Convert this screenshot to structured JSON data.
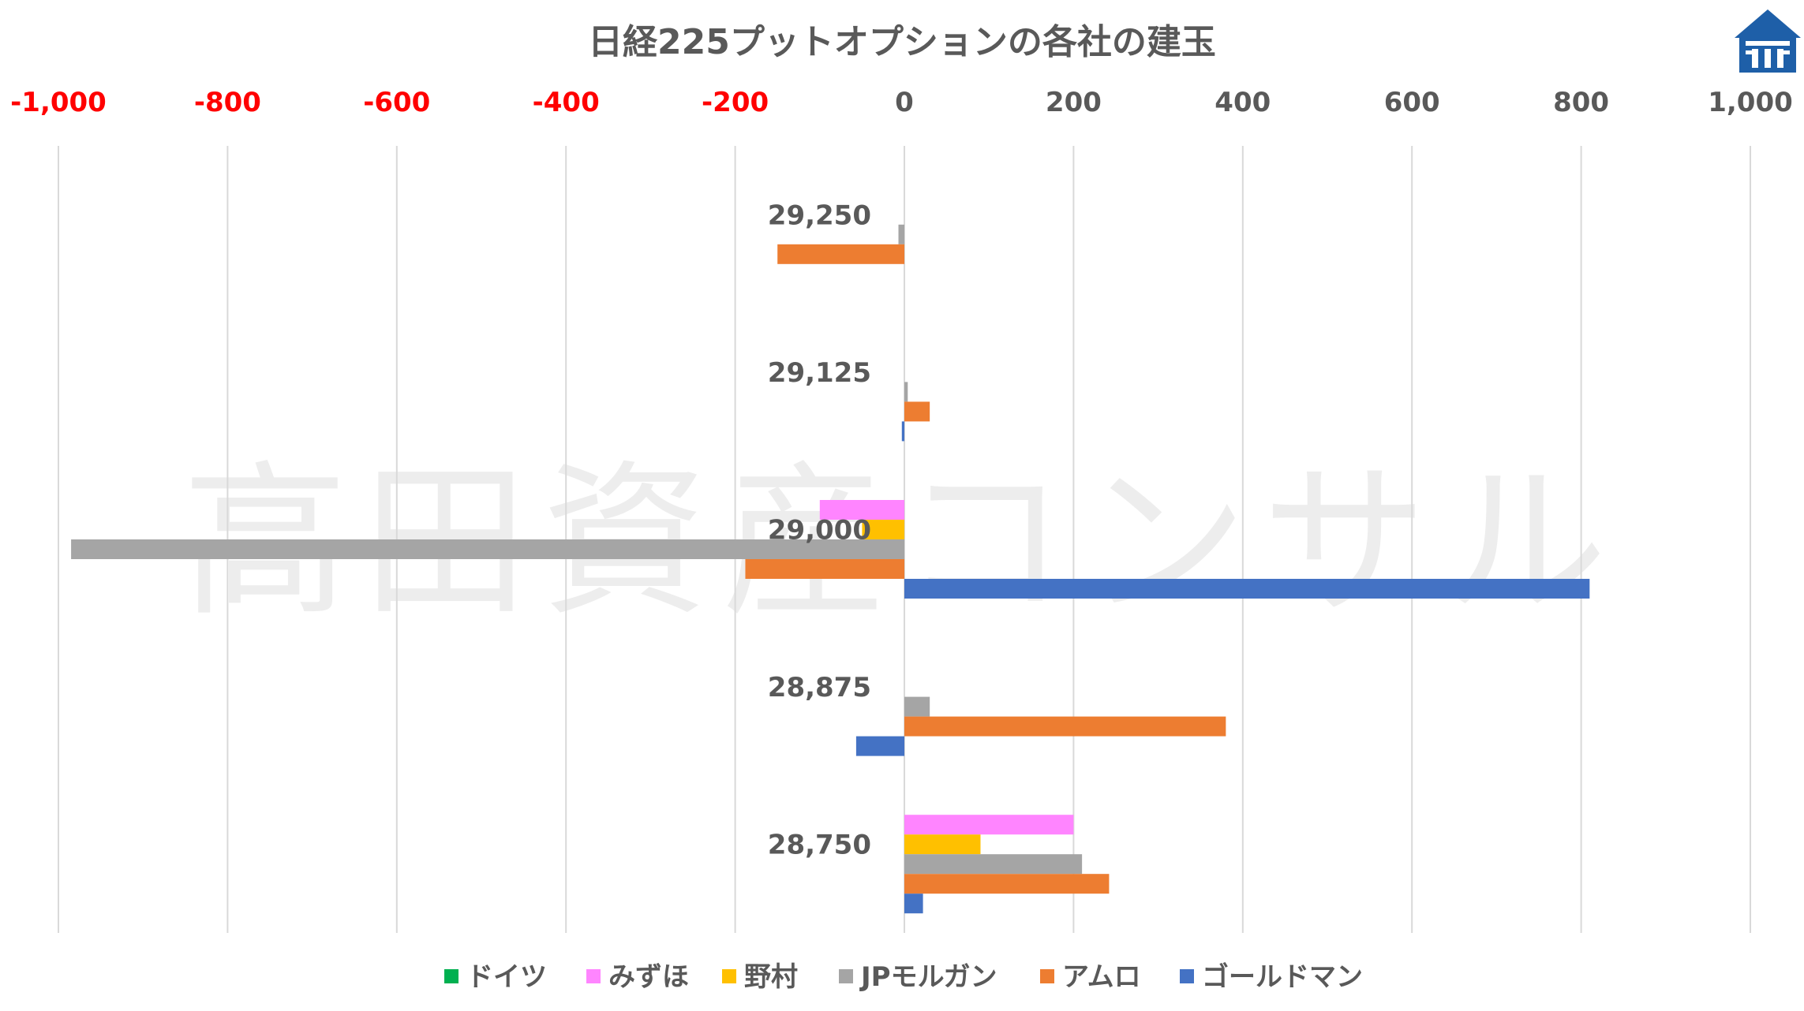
{
  "chart_data": {
    "type": "bar",
    "orientation": "horizontal",
    "title": "日経225プットオプションの各社の建玉",
    "watermark": "高田資産コンサル",
    "xlim": [
      -1000,
      1000
    ],
    "x_ticks": [
      -1000,
      -800,
      -600,
      -400,
      -200,
      0,
      200,
      400,
      600,
      800,
      1000
    ],
    "x_tick_labels": [
      "-1,000",
      "-800",
      "-600",
      "-400",
      "-200",
      "0",
      "200",
      "400",
      "600",
      "800",
      "1,000"
    ],
    "negative_tick_color": "#ff0000",
    "tick_color": "#595959",
    "grid": true,
    "legend_position": "bottom",
    "categories": [
      "29,250",
      "29,125",
      "29,000",
      "28,875",
      "28,750"
    ],
    "series": [
      {
        "name": "ドイツ",
        "color": "#00b050",
        "values": [
          0,
          0,
          0,
          0,
          0
        ]
      },
      {
        "name": "みずほ",
        "color": "#ff85ff",
        "values": [
          0,
          0,
          -100,
          0,
          200
        ]
      },
      {
        "name": "野村",
        "color": "#ffc000",
        "values": [
          0,
          0,
          -50,
          0,
          90
        ]
      },
      {
        "name": "JPモルガン",
        "color": "#a5a5a5",
        "values": [
          -7,
          4,
          -985,
          30,
          210
        ]
      },
      {
        "name": "アムロ",
        "color": "#ed7d31",
        "values": [
          -150,
          30,
          -188,
          380,
          242
        ]
      },
      {
        "name": "ゴールドマン",
        "color": "#4472c4",
        "values": [
          0,
          -3,
          810,
          -57,
          22
        ]
      }
    ]
  }
}
